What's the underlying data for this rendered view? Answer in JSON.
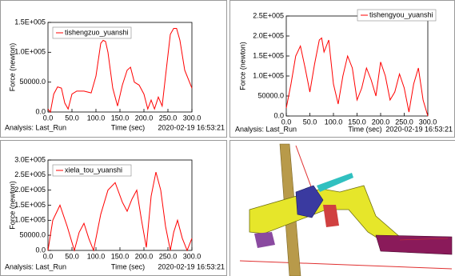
{
  "chart_data": [
    {
      "type": "line",
      "ylabel": "Force (newton)",
      "xlabel": "Time (sec)",
      "analysis": "Analysis:  Last_Run",
      "timestamp": "2020-02-19 16:53:21",
      "x": [
        0,
        5,
        12,
        20,
        28,
        35,
        42,
        50,
        60,
        75,
        90,
        100,
        110,
        115,
        120,
        125,
        135,
        145,
        155,
        165,
        172,
        180,
        190,
        200,
        208,
        215,
        222,
        230,
        238,
        245,
        255,
        262,
        268,
        275,
        285,
        295,
        300
      ],
      "series": [
        {
          "name": "tishengzuo_yuanshi",
          "color": "#ff0000",
          "values": [
            5000,
            0,
            30000,
            42000,
            40000,
            15000,
            5000,
            30000,
            35000,
            35000,
            32000,
            60000,
            115000,
            120000,
            118000,
            100000,
            40000,
            10000,
            45000,
            70000,
            75000,
            50000,
            45000,
            30000,
            5000,
            20000,
            5000,
            25000,
            10000,
            60000,
            130000,
            140000,
            140000,
            120000,
            70000,
            50000,
            40000
          ]
        }
      ],
      "xlim": [
        0,
        300
      ],
      "xticks": [
        {
          "value": 0,
          "label": "0.0"
        },
        {
          "value": 50,
          "label": "50.0"
        },
        {
          "value": 100,
          "label": "100.0"
        },
        {
          "value": 150,
          "label": "150.0"
        },
        {
          "value": 200,
          "label": "200.0"
        },
        {
          "value": 250,
          "label": "250.0"
        },
        {
          "value": 300,
          "label": "300.0"
        }
      ],
      "ylim": [
        0,
        150000
      ],
      "yticks": [
        {
          "value": 0,
          "label": "0.0"
        },
        {
          "value": 50000,
          "label": "50000.0"
        },
        {
          "value": 100000,
          "label": "1.0E+005"
        },
        {
          "value": 150000,
          "label": "1.5E+005"
        }
      ],
      "legend": "upper left"
    },
    {
      "type": "line",
      "ylabel": "Force (newton)",
      "xlabel": "Time (sec)",
      "analysis": "Analysis:  Last_Run",
      "timestamp": "2020-02-19 16:53:21",
      "x": [
        0,
        10,
        20,
        30,
        40,
        50,
        60,
        70,
        75,
        80,
        90,
        100,
        110,
        120,
        130,
        140,
        150,
        160,
        170,
        180,
        190,
        200,
        210,
        220,
        230,
        240,
        250,
        260,
        270,
        280,
        290,
        300
      ],
      "series": [
        {
          "name": "tishengyou_yuanshi",
          "color": "#ff0000",
          "values": [
            20000,
            80000,
            150000,
            175000,
            120000,
            60000,
            130000,
            190000,
            195000,
            160000,
            190000,
            80000,
            30000,
            100000,
            150000,
            120000,
            40000,
            70000,
            120000,
            90000,
            50000,
            135000,
            100000,
            40000,
            60000,
            105000,
            70000,
            10000,
            80000,
            120000,
            40000,
            0
          ]
        }
      ],
      "xlim": [
        0,
        300
      ],
      "xticks": [
        {
          "value": 0,
          "label": "0.0"
        },
        {
          "value": 50,
          "label": "50.0"
        },
        {
          "value": 100,
          "label": "100.0"
        },
        {
          "value": 150,
          "label": "150.0"
        },
        {
          "value": 200,
          "label": "200.0"
        },
        {
          "value": 250,
          "label": "250.0"
        },
        {
          "value": 300,
          "label": "300.0"
        }
      ],
      "ylim": [
        0,
        250000
      ],
      "yticks": [
        {
          "value": 0,
          "label": "0.0"
        },
        {
          "value": 50000,
          "label": "50000.0"
        },
        {
          "value": 100000,
          "label": "1.0E+005"
        },
        {
          "value": 150000,
          "label": "1.5E+005"
        },
        {
          "value": 200000,
          "label": "2.0E+005"
        },
        {
          "value": 250000,
          "label": "2.5E+005"
        }
      ],
      "legend": "upper right"
    },
    {
      "type": "line",
      "ylabel": "Force (newton)",
      "xlabel": "Time (sec)",
      "analysis": "Analysis:  Last_Run",
      "timestamp": "2020-02-19 16:53:21",
      "x": [
        0,
        10,
        25,
        40,
        55,
        65,
        75,
        85,
        95,
        110,
        125,
        140,
        155,
        165,
        175,
        185,
        195,
        205,
        215,
        225,
        235,
        245,
        255,
        262,
        270,
        280,
        290,
        300
      ],
      "series": [
        {
          "name": "xiela_tou_yuanshi",
          "color": "#ff0000",
          "values": [
            0,
            100000,
            150000,
            80000,
            0,
            60000,
            90000,
            40000,
            0,
            120000,
            200000,
            225000,
            160000,
            130000,
            170000,
            200000,
            100000,
            10000,
            180000,
            260000,
            200000,
            80000,
            0,
            60000,
            100000,
            40000,
            0,
            40000
          ]
        }
      ],
      "xlim": [
        0,
        300
      ],
      "xticks": [
        {
          "value": 0,
          "label": "0.0"
        },
        {
          "value": 50,
          "label": "50.0"
        },
        {
          "value": 100,
          "label": "100.0"
        },
        {
          "value": 150,
          "label": "150.0"
        },
        {
          "value": 200,
          "label": "200.0"
        },
        {
          "value": 250,
          "label": "250.0"
        },
        {
          "value": 300,
          "label": "300.0"
        }
      ],
      "ylim": [
        0,
        300000
      ],
      "yticks": [
        {
          "value": 0,
          "label": "0.0"
        },
        {
          "value": 50000,
          "label": "50000.0"
        },
        {
          "value": 100000,
          "label": "1.0E+005"
        },
        {
          "value": 150000,
          "label": "1.5E+005"
        },
        {
          "value": 200000,
          "label": "2.0E+005"
        },
        {
          "value": 250000,
          "label": "2.5E+005"
        },
        {
          "value": 300000,
          "label": "3.0E+005"
        }
      ],
      "legend": "upper left"
    }
  ]
}
